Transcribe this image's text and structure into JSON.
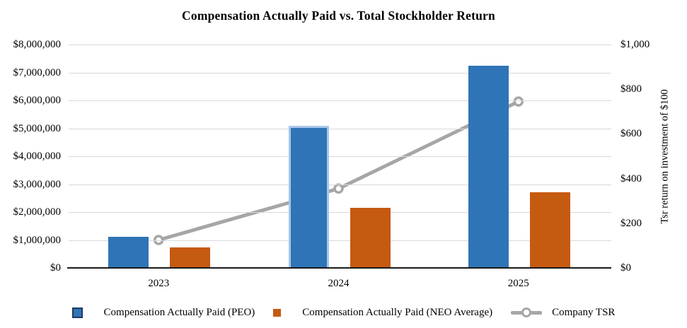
{
  "title": "Compensation Actually Paid vs. Total Stockholder Return",
  "chart_data": {
    "type": "bar+line combo",
    "categories": [
      "2023",
      "2024",
      "2025"
    ],
    "series": [
      {
        "name": "Compensation Actually Paid (PEO)",
        "type": "bar",
        "axis": "left",
        "color": "#2E74B6",
        "values": [
          1120000,
          5100000,
          7240000
        ]
      },
      {
        "name": "Compensation Actually Paid (NEO Average)",
        "type": "bar",
        "axis": "left",
        "color": "#C55A11",
        "values": [
          740000,
          2160000,
          2720000
        ]
      },
      {
        "name": "Company TSR",
        "type": "line",
        "axis": "right",
        "color": "#A6A6A6",
        "marker": "open-circle",
        "values": [
          125,
          355,
          745
        ]
      }
    ],
    "highlight": {
      "series_index": 0,
      "category_index": 1,
      "border_color": "#A8C6E8"
    },
    "left_axis": {
      "min": 0,
      "max": 8000000,
      "step": 1000000,
      "tick_prefix": "$"
    },
    "right_axis": {
      "min": 0,
      "max": 1000,
      "step": 200,
      "tick_prefix": "$",
      "label": "Tsr return on investment of $100"
    },
    "grid": true,
    "legend_position": "bottom"
  },
  "colors": {
    "peo_bar": "#2E74B6",
    "neo_bar": "#C55A11",
    "tsr_line": "#A6A6A6",
    "gridline": "#D9D9D9",
    "axis_line": "#1A1A1A",
    "highlight_border": "#A8C6E8",
    "legend_peo_border": "#1F3864"
  }
}
